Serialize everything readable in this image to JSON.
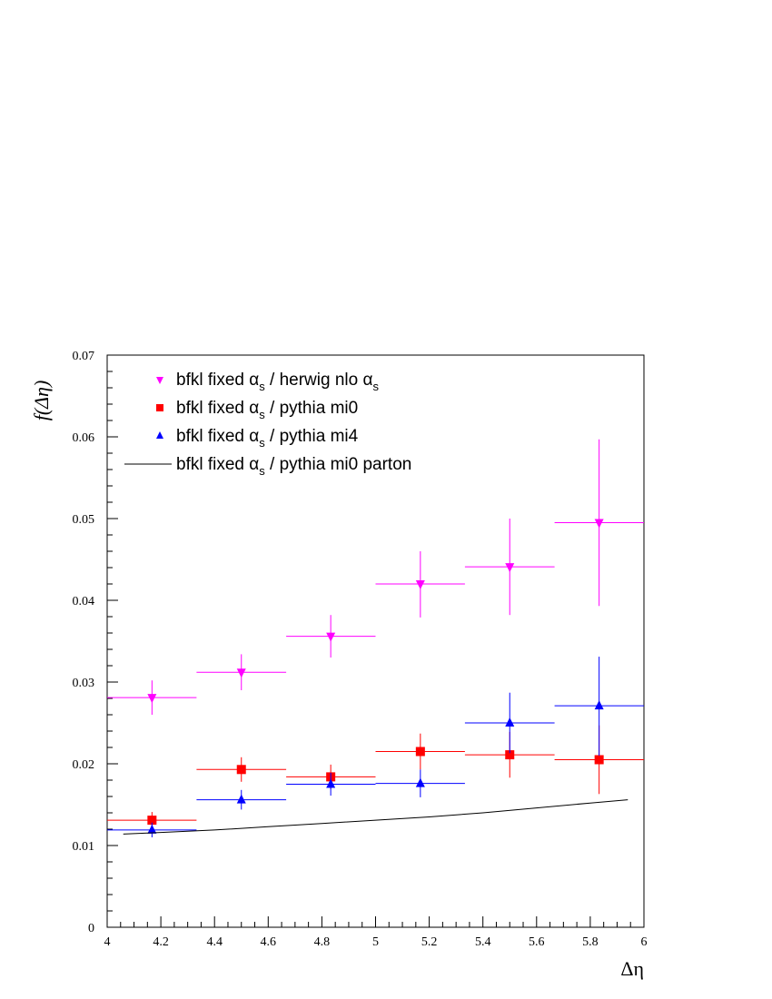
{
  "chart_data": {
    "type": "scatter",
    "title": "",
    "xlabel": "Δη",
    "ylabel": "f(Δη)",
    "xlim": [
      4,
      6
    ],
    "ylim": [
      0,
      0.07
    ],
    "x_ticks": [
      "4",
      "4.2",
      "4.4",
      "4.6",
      "4.8",
      "5",
      "5.2",
      "5.4",
      "5.6",
      "5.8",
      "6"
    ],
    "y_ticks": [
      "0",
      "0.01",
      "0.02",
      "0.03",
      "0.04",
      "0.05",
      "0.06",
      "0.07"
    ],
    "grid": false,
    "legend_position": "top-left",
    "series": [
      {
        "name_parts": [
          "bfkl fixed α",
          "s",
          " / herwig nlo α",
          "s"
        ],
        "color": "#ff00ff",
        "marker": "triangle-down",
        "points": [
          {
            "x": 4.167,
            "y": 0.0281,
            "xlo": 4.0,
            "xhi": 4.333,
            "ylo": 0.026,
            "yhi": 0.0302
          },
          {
            "x": 4.5,
            "y": 0.0312,
            "xlo": 4.333,
            "xhi": 4.667,
            "ylo": 0.029,
            "yhi": 0.0334
          },
          {
            "x": 4.833,
            "y": 0.0356,
            "xlo": 4.667,
            "xhi": 5.0,
            "ylo": 0.033,
            "yhi": 0.0382
          },
          {
            "x": 5.167,
            "y": 0.042,
            "xlo": 5.0,
            "xhi": 5.333,
            "ylo": 0.0379,
            "yhi": 0.046
          },
          {
            "x": 5.5,
            "y": 0.0441,
            "xlo": 5.333,
            "xhi": 5.667,
            "ylo": 0.0382,
            "yhi": 0.05
          },
          {
            "x": 5.833,
            "y": 0.0495,
            "xlo": 5.667,
            "xhi": 6.0,
            "ylo": 0.0393,
            "yhi": 0.0597
          }
        ]
      },
      {
        "name_parts": [
          "bfkl fixed α",
          "s",
          " / pythia mi0",
          ""
        ],
        "color": "#ff0000",
        "marker": "square",
        "points": [
          {
            "x": 4.167,
            "y": 0.0131,
            "xlo": 4.0,
            "xhi": 4.333,
            "ylo": 0.0121,
            "yhi": 0.0141
          },
          {
            "x": 4.5,
            "y": 0.0193,
            "xlo": 4.333,
            "xhi": 4.667,
            "ylo": 0.0178,
            "yhi": 0.0208
          },
          {
            "x": 4.833,
            "y": 0.0184,
            "xlo": 4.667,
            "xhi": 5.0,
            "ylo": 0.0169,
            "yhi": 0.0199
          },
          {
            "x": 5.167,
            "y": 0.0215,
            "xlo": 5.0,
            "xhi": 5.333,
            "ylo": 0.0193,
            "yhi": 0.0237
          },
          {
            "x": 5.5,
            "y": 0.0211,
            "xlo": 5.333,
            "xhi": 5.667,
            "ylo": 0.0183,
            "yhi": 0.0239
          },
          {
            "x": 5.833,
            "y": 0.0205,
            "xlo": 5.667,
            "xhi": 6.0,
            "ylo": 0.0163,
            "yhi": 0.0247
          }
        ]
      },
      {
        "name_parts": [
          "bfkl fixed α",
          "s",
          " / pythia mi4",
          ""
        ],
        "color": "#0000ff",
        "marker": "triangle-up",
        "points": [
          {
            "x": 4.167,
            "y": 0.0119,
            "xlo": 4.0,
            "xhi": 4.333,
            "ylo": 0.011,
            "yhi": 0.0128
          },
          {
            "x": 4.5,
            "y": 0.0156,
            "xlo": 4.333,
            "xhi": 4.667,
            "ylo": 0.0144,
            "yhi": 0.0168
          },
          {
            "x": 4.833,
            "y": 0.0175,
            "xlo": 4.667,
            "xhi": 5.0,
            "ylo": 0.0161,
            "yhi": 0.0189
          },
          {
            "x": 5.167,
            "y": 0.0176,
            "xlo": 5.0,
            "xhi": 5.333,
            "ylo": 0.0159,
            "yhi": 0.0193
          },
          {
            "x": 5.5,
            "y": 0.025,
            "xlo": 5.333,
            "xhi": 5.667,
            "ylo": 0.0213,
            "yhi": 0.0287
          },
          {
            "x": 5.833,
            "y": 0.0271,
            "xlo": 5.667,
            "xhi": 6.0,
            "ylo": 0.021,
            "yhi": 0.0331
          }
        ]
      },
      {
        "name_parts": [
          "bfkl fixed α",
          "s",
          " / pythia mi0 parton",
          ""
        ],
        "color": "#000000",
        "marker": "line",
        "x": [
          4.06,
          4.2,
          4.4,
          4.6,
          4.8,
          5.0,
          5.2,
          5.4,
          5.6,
          5.8,
          5.94
        ],
        "y": [
          0.0114,
          0.0116,
          0.0119,
          0.0123,
          0.0127,
          0.0131,
          0.0135,
          0.014,
          0.0146,
          0.0152,
          0.0156
        ]
      }
    ]
  }
}
